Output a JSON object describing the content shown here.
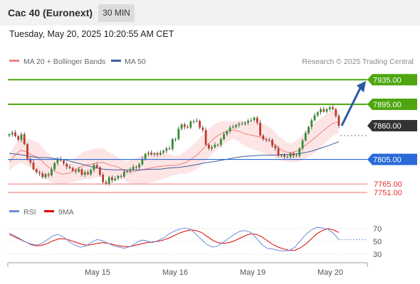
{
  "header": {
    "title": "Cac 40 (Euronext)",
    "timeframe": "30 MIN"
  },
  "timestamp": "Tuesday, May 20, 2025 10:20:55 AM CET",
  "credit": "Research © 2025 Trading Central",
  "legend": {
    "ma_bb": "MA 20 + Bollinger Bands",
    "ma50": "MA 50",
    "rsi": "RSI",
    "rsi_ma": "9MA"
  },
  "colors": {
    "up": "#2f8f2f",
    "down": "#c0392b",
    "ma20": "#f08080",
    "ma50": "#3a5fa0",
    "band": "#fde0e0",
    "resistance": "#4da60e",
    "support_blue": "#2a6ad8",
    "support_red": "#ee7777",
    "last": "#333333",
    "arrow": "#2a5aa0"
  },
  "chart_data": [
    {
      "type": "line",
      "title": "Cac 40 (Euronext)",
      "ylim": [
        7735,
        7955
      ],
      "x_ticks": [
        "May 15",
        "May 16",
        "May 19",
        "May 20"
      ],
      "levels": [
        {
          "value": 7935.0,
          "label": "7935.00",
          "style": "resistance"
        },
        {
          "value": 7895.0,
          "label": "7895.00",
          "style": "resistance"
        },
        {
          "value": 7860.0,
          "label": "7860.00",
          "style": "last"
        },
        {
          "value": 7805.0,
          "label": "7805.00",
          "style": "support_blue"
        },
        {
          "value": 7765.0,
          "label": "7765.00",
          "style": "support_red"
        },
        {
          "value": 7751.0,
          "label": "7751.00",
          "style": "support_red"
        }
      ],
      "projection": {
        "from": 7860,
        "to": 7935
      },
      "series": [
        {
          "name": "Price",
          "values": [
            7846,
            7849,
            7843,
            7837,
            7846,
            7830,
            7806,
            7800,
            7789,
            7784,
            7782,
            7776,
            7781,
            7779,
            7789,
            7799,
            7806,
            7803,
            7798,
            7793,
            7791,
            7787,
            7785,
            7789,
            7780,
            7784,
            7781,
            7788,
            7796,
            7792,
            7780,
            7768,
            7765,
            7776,
            7771,
            7774,
            7778,
            7777,
            7785,
            7786,
            7789,
            7793,
            7792,
            7797,
            7806,
            7814,
            7816,
            7813,
            7815,
            7813,
            7816,
            7819,
            7823,
            7822,
            7838,
            7838,
            7855,
            7862,
            7858,
            7857,
            7867,
            7867,
            7868,
            7857,
            7853,
            7829,
            7823,
            7825,
            7829,
            7829,
            7838,
            7846,
            7851,
            7857,
            7858,
            7861,
            7863,
            7863,
            7865,
            7868,
            7869,
            7873,
            7865,
            7844,
            7838,
            7837,
            7837,
            7827,
            7823,
            7811,
            7812,
            7809,
            7809,
            7815,
            7811,
            7811,
            7823,
            7836,
            7848,
            7858,
            7869,
            7877,
            7882,
            7887,
            7883,
            7887,
            7890,
            7887,
            7876,
            7860
          ]
        },
        {
          "name": "MA 20",
          "values": [
            7800,
            7812,
            7820,
            7817,
            7812,
            7808,
            7798,
            7790,
            7784,
            7781,
            7782,
            7787,
            7792,
            7796,
            7797,
            7800,
            7800,
            7796,
            7794,
            7790,
            7785,
            7785,
            7787,
            7789,
            7791,
            7793,
            7794,
            7795,
            7795,
            7797,
            7800,
            7806,
            7813,
            7823,
            7832,
            7841,
            7847,
            7851,
            7853,
            7851,
            7847,
            7845,
            7843,
            7840,
            7836,
            7830,
            7822,
            7817,
            7816,
            7819,
            7826,
            7833,
            7841,
            7849,
            7857,
            7864,
            7866
          ]
        },
        {
          "name": "MA 50",
          "values": [
            7815,
            7813,
            7811,
            7808,
            7808,
            7806,
            7804,
            7800,
            7796,
            7792,
            7789,
            7788,
            7788,
            7788,
            7788,
            7789,
            7789,
            7791,
            7792,
            7794,
            7797,
            7800,
            7802,
            7805,
            7808,
            7810,
            7811,
            7812,
            7812,
            7813,
            7813,
            7815,
            7818,
            7823,
            7828,
            7834
          ]
        },
        {
          "name": "RSI",
          "values": [
            63,
            59,
            54,
            49,
            46,
            44,
            47,
            53,
            59,
            61,
            56,
            49,
            44,
            41,
            43,
            49,
            53,
            51,
            47,
            43,
            41,
            39,
            42,
            47,
            52,
            51,
            48,
            51,
            55,
            61,
            66,
            69,
            71,
            69,
            61,
            53,
            45,
            41,
            43,
            49,
            55,
            61,
            66,
            67,
            64,
            55,
            45,
            39,
            38,
            36,
            35,
            36,
            41,
            51,
            61,
            68,
            72,
            71,
            69,
            63,
            53
          ]
        },
        {
          "name": "9MA",
          "values": [
            61,
            57,
            53,
            49,
            45,
            43,
            44,
            47,
            51,
            54,
            54,
            52,
            49,
            46,
            44,
            45,
            47,
            48,
            47,
            45,
            43,
            42,
            42,
            44,
            46,
            48,
            49,
            50,
            52,
            55,
            59,
            63,
            66,
            68,
            67,
            64,
            58,
            52,
            48,
            47,
            48,
            51,
            55,
            59,
            62,
            61,
            57,
            51,
            45,
            41,
            38,
            36,
            36,
            40,
            46,
            54,
            62,
            67,
            70,
            68,
            64
          ]
        }
      ]
    }
  ],
  "rsi_panel": {
    "ticks": [
      "70",
      "50",
      "30"
    ]
  }
}
